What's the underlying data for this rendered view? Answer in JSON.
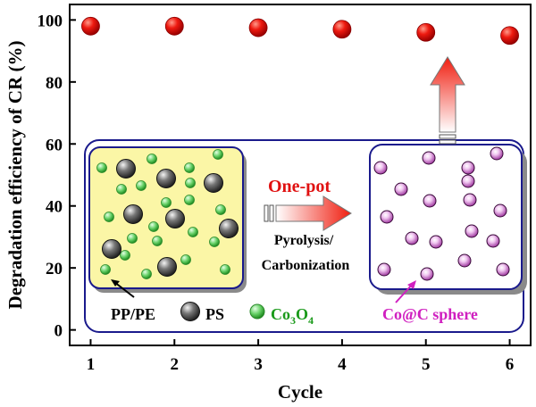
{
  "chart_data": {
    "type": "scatter",
    "xlabel": "Cycle",
    "ylabel": "Degradation efficiency of CR (%)",
    "x": [
      1,
      2,
      3,
      4,
      5,
      6
    ],
    "y": [
      98.0,
      98.0,
      97.5,
      97.0,
      96.0,
      95.0
    ],
    "xlim": [
      0.75,
      6.25
    ],
    "ylim": [
      -5,
      105
    ],
    "xticks": [
      "1",
      "2",
      "3",
      "4",
      "5",
      "6"
    ],
    "yticks": [
      "0",
      "20",
      "40",
      "60",
      "80",
      "100"
    ],
    "marker_color": "#e01010",
    "grid": false
  },
  "inset": {
    "arrow_top_label": "One-pot",
    "arrow_bottom_label_1": "Pyrolysis/",
    "arrow_bottom_label_2": "Carbonization",
    "legend_pp_pe": "PP/PE",
    "legend_ps": "PS",
    "legend_co3o4_base": "Co",
    "legend_co3o4_sub1": "3",
    "legend_co3o4_mid": "O",
    "legend_co3o4_sub2": "4",
    "legend_co_c": "Co@C sphere",
    "colors": {
      "yellow_box": "#fbf6a6",
      "frame_blue": "#1a1a8c",
      "co3o4_green": "#4cc64c",
      "ps_gray": "#555555",
      "co_c_pink": "#cc55cc",
      "one_pot_red": "#e01010",
      "co_c_label": "#d020c0",
      "co3o4_label": "#1a9a1a"
    }
  }
}
